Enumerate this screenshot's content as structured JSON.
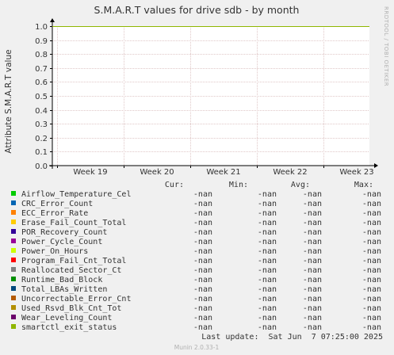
{
  "chart_data": {
    "type": "line",
    "title": "S.M.A.R.T values for drive sdb - by month",
    "ylabel": "Attribute S.M.A.R.T value",
    "xlabel": "",
    "watermark": "RRDTOOL / TOBI OETIKER",
    "ylim": [
      0,
      1.0
    ],
    "yticks": [
      "0.0",
      "0.1",
      "0.2",
      "0.3",
      "0.4",
      "0.5",
      "0.6",
      "0.7",
      "0.8",
      "0.9",
      "1.0"
    ],
    "categories": [
      "Week 19",
      "Week 20",
      "Week 21",
      "Week 22",
      "Week 23"
    ],
    "grid": true,
    "series": [
      {
        "name": "smartctl_exit_status",
        "values": [
          1.0,
          1.0,
          1.0,
          1.0,
          1.0
        ],
        "color": "#8fb600"
      }
    ]
  },
  "legend": {
    "headers": {
      "cur": "Cur:",
      "min": "Min:",
      "avg": "Avg:",
      "max": "Max:"
    },
    "rows": [
      {
        "name": "Airflow_Temperature_Cel",
        "color": "#00cc00",
        "cur": "-nan",
        "min": "-nan",
        "avg": "-nan",
        "max": "-nan"
      },
      {
        "name": "CRC_Error_Count",
        "color": "#0066b3",
        "cur": "-nan",
        "min": "-nan",
        "avg": "-nan",
        "max": "-nan"
      },
      {
        "name": "ECC_Error_Rate",
        "color": "#ff8000",
        "cur": "-nan",
        "min": "-nan",
        "avg": "-nan",
        "max": "-nan"
      },
      {
        "name": "Erase_Fail_Count_Total",
        "color": "#ffcc00",
        "cur": "-nan",
        "min": "-nan",
        "avg": "-nan",
        "max": "-nan"
      },
      {
        "name": "POR_Recovery_Count",
        "color": "#330099",
        "cur": "-nan",
        "min": "-nan",
        "avg": "-nan",
        "max": "-nan"
      },
      {
        "name": "Power_Cycle_Count",
        "color": "#990099",
        "cur": "-nan",
        "min": "-nan",
        "avg": "-nan",
        "max": "-nan"
      },
      {
        "name": "Power_On_Hours",
        "color": "#ccff00",
        "cur": "-nan",
        "min": "-nan",
        "avg": "-nan",
        "max": "-nan"
      },
      {
        "name": "Program_Fail_Cnt_Total",
        "color": "#ff0000",
        "cur": "-nan",
        "min": "-nan",
        "avg": "-nan",
        "max": "-nan"
      },
      {
        "name": "Reallocated_Sector_Ct",
        "color": "#808080",
        "cur": "-nan",
        "min": "-nan",
        "avg": "-nan",
        "max": "-nan"
      },
      {
        "name": "Runtime_Bad_Block",
        "color": "#008f00",
        "cur": "-nan",
        "min": "-nan",
        "avg": "-nan",
        "max": "-nan"
      },
      {
        "name": "Total_LBAs_Written",
        "color": "#00487d",
        "cur": "-nan",
        "min": "-nan",
        "avg": "-nan",
        "max": "-nan"
      },
      {
        "name": "Uncorrectable_Error_Cnt",
        "color": "#b35a00",
        "cur": "-nan",
        "min": "-nan",
        "avg": "-nan",
        "max": "-nan"
      },
      {
        "name": "Used_Rsvd_Blk_Cnt_Tot",
        "color": "#b38f00",
        "cur": "-nan",
        "min": "-nan",
        "avg": "-nan",
        "max": "-nan"
      },
      {
        "name": "Wear_Leveling_Count",
        "color": "#6b006b",
        "cur": "-nan",
        "min": "-nan",
        "avg": "-nan",
        "max": "-nan"
      },
      {
        "name": "smartctl_exit_status",
        "color": "#8fb600",
        "cur": "-nan",
        "min": "-nan",
        "avg": "-nan",
        "max": "-nan"
      }
    ]
  },
  "last_update": "Last update:  Sat Jun  7 07:25:00 2025",
  "footer": "Munin 2.0.33-1"
}
